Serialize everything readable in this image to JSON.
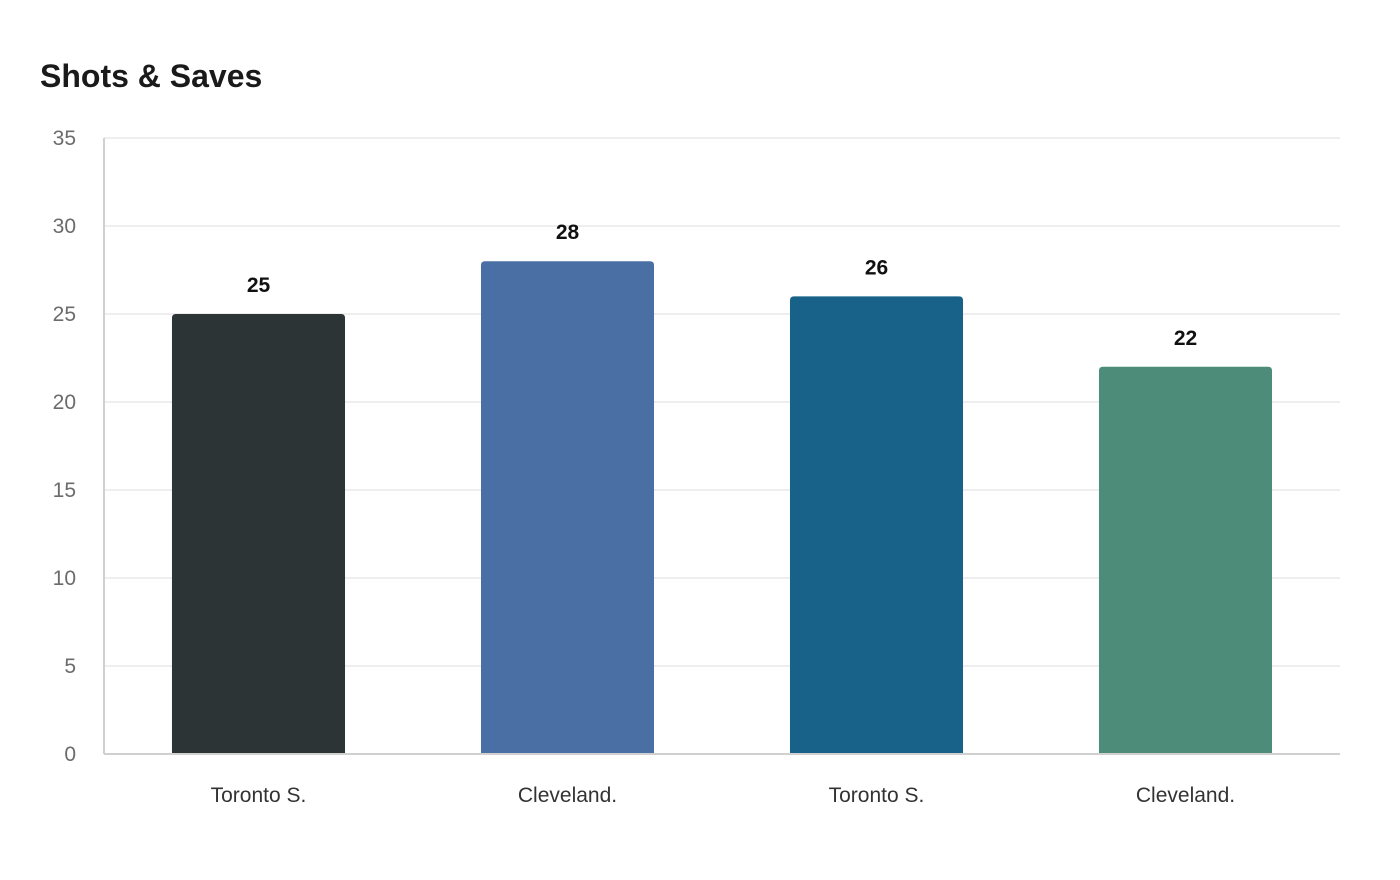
{
  "chart_data": {
    "type": "bar",
    "title": "Shots & Saves",
    "xlabel": "",
    "ylabel": "",
    "categories": [
      "Toronto S.",
      "Cleveland.",
      "Toronto S.",
      "Cleveland."
    ],
    "values": [
      25,
      28,
      26,
      22
    ],
    "colors": [
      "#2d3436",
      "#4a6fa5",
      "#186189",
      "#4e8c7a"
    ],
    "ylim": [
      0,
      35
    ],
    "yticks": [
      0,
      5,
      10,
      15,
      20,
      25,
      30,
      35
    ],
    "grid": true,
    "data_labels": true
  }
}
